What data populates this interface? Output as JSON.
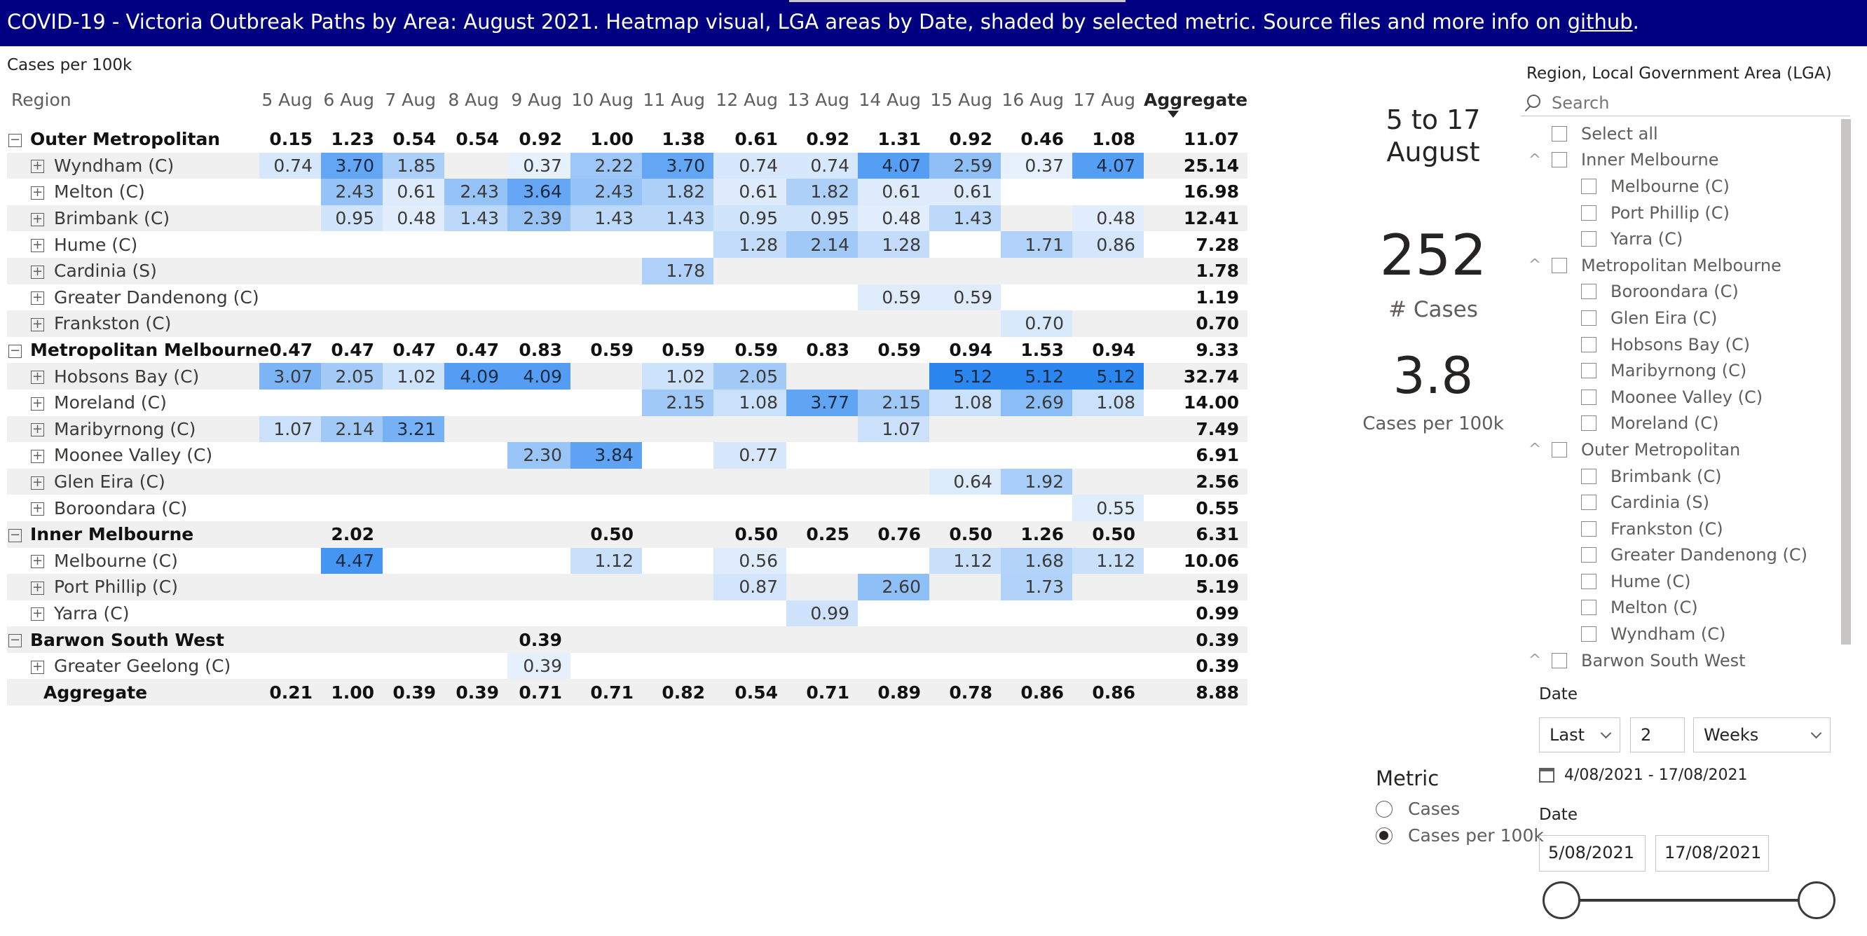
{
  "banner": {
    "text": "COVID-19  - Victoria Outbreak Paths by Area: August 2021.  Heatmap visual, LGA areas by Date, shaded by selected metric. Source files and more info on ",
    "link": "github",
    "suffix": "."
  },
  "matrix": {
    "title": "Cases per 100k",
    "region_header": "Region",
    "dates": [
      "5 Aug",
      "6 Aug",
      "7 Aug",
      "8 Aug",
      "9 Aug",
      "10 Aug",
      "11 Aug",
      "12 Aug",
      "13 Aug",
      "14 Aug",
      "15 Aug",
      "16 Aug",
      "17 Aug"
    ],
    "aggregate_header": "Aggregate",
    "max_value": 5.12,
    "rows": [
      {
        "type": "group",
        "label": "Outer Metropolitan",
        "values": [
          "0.15",
          "1.23",
          "0.54",
          "0.54",
          "0.92",
          "1.00",
          "1.38",
          "0.61",
          "0.92",
          "1.31",
          "0.92",
          "0.46",
          "1.08"
        ],
        "aggregate": "11.07"
      },
      {
        "type": "child",
        "label": "Wyndham (C)",
        "values": [
          "0.74",
          "3.70",
          "1.85",
          "",
          "0.37",
          "2.22",
          "3.70",
          "0.74",
          "0.74",
          "4.07",
          "2.59",
          "0.37",
          "4.07"
        ],
        "aggregate": "25.14"
      },
      {
        "type": "child",
        "label": "Melton (C)",
        "values": [
          "",
          "2.43",
          "0.61",
          "2.43",
          "3.64",
          "2.43",
          "1.82",
          "0.61",
          "1.82",
          "0.61",
          "0.61",
          "",
          ""
        ],
        "aggregate": "16.98"
      },
      {
        "type": "child",
        "label": "Brimbank (C)",
        "values": [
          "",
          "0.95",
          "0.48",
          "1.43",
          "2.39",
          "1.43",
          "1.43",
          "0.95",
          "0.95",
          "0.48",
          "1.43",
          "",
          "0.48"
        ],
        "aggregate": "12.41"
      },
      {
        "type": "child",
        "label": "Hume (C)",
        "values": [
          "",
          "",
          "",
          "",
          "",
          "",
          "",
          "1.28",
          "2.14",
          "1.28",
          "",
          "1.71",
          "0.86"
        ],
        "aggregate": "7.28"
      },
      {
        "type": "child",
        "label": "Cardinia (S)",
        "values": [
          "",
          "",
          "",
          "",
          "",
          "",
          "1.78",
          "",
          "",
          "",
          "",
          "",
          ""
        ],
        "aggregate": "1.78"
      },
      {
        "type": "child",
        "label": "Greater Dandenong (C)",
        "values": [
          "",
          "",
          "",
          "",
          "",
          "",
          "",
          "",
          "",
          "0.59",
          "0.59",
          "",
          ""
        ],
        "aggregate": "1.19"
      },
      {
        "type": "child",
        "label": "Frankston (C)",
        "values": [
          "",
          "",
          "",
          "",
          "",
          "",
          "",
          "",
          "",
          "",
          "",
          "0.70",
          ""
        ],
        "aggregate": "0.70"
      },
      {
        "type": "group",
        "label": "Metropolitan Melbourne",
        "values": [
          "0.47",
          "0.47",
          "0.47",
          "0.47",
          "0.83",
          "0.59",
          "0.59",
          "0.59",
          "0.83",
          "0.59",
          "0.94",
          "1.53",
          "0.94"
        ],
        "aggregate": "9.33"
      },
      {
        "type": "child",
        "label": "Hobsons Bay (C)",
        "values": [
          "3.07",
          "2.05",
          "1.02",
          "4.09",
          "4.09",
          "",
          "1.02",
          "2.05",
          "",
          "",
          "5.12",
          "5.12",
          "5.12"
        ],
        "aggregate": "32.74"
      },
      {
        "type": "child",
        "label": "Moreland (C)",
        "values": [
          "",
          "",
          "",
          "",
          "",
          "",
          "2.15",
          "1.08",
          "3.77",
          "2.15",
          "1.08",
          "2.69",
          "1.08"
        ],
        "aggregate": "14.00"
      },
      {
        "type": "child",
        "label": "Maribyrnong (C)",
        "values": [
          "1.07",
          "2.14",
          "3.21",
          "",
          "",
          "",
          "",
          "",
          "",
          "1.07",
          "",
          "",
          ""
        ],
        "aggregate": "7.49"
      },
      {
        "type": "child",
        "label": "Moonee Valley (C)",
        "values": [
          "",
          "",
          "",
          "",
          "2.30",
          "3.84",
          "",
          "0.77",
          "",
          "",
          "",
          "",
          ""
        ],
        "aggregate": "6.91"
      },
      {
        "type": "child",
        "label": "Glen Eira (C)",
        "values": [
          "",
          "",
          "",
          "",
          "",
          "",
          "",
          "",
          "",
          "",
          "0.64",
          "1.92",
          ""
        ],
        "aggregate": "2.56"
      },
      {
        "type": "child",
        "label": "Boroondara (C)",
        "values": [
          "",
          "",
          "",
          "",
          "",
          "",
          "",
          "",
          "",
          "",
          "",
          "",
          "0.55"
        ],
        "aggregate": "0.55"
      },
      {
        "type": "group",
        "label": "Inner Melbourne",
        "values": [
          "",
          "2.02",
          "",
          "",
          "",
          "0.50",
          "",
          "0.50",
          "0.25",
          "0.76",
          "0.50",
          "1.26",
          "0.50"
        ],
        "aggregate": "6.31"
      },
      {
        "type": "child",
        "label": "Melbourne (C)",
        "values": [
          "",
          "4.47",
          "",
          "",
          "",
          "1.12",
          "",
          "0.56",
          "",
          "",
          "1.12",
          "1.68",
          "1.12"
        ],
        "aggregate": "10.06"
      },
      {
        "type": "child",
        "label": "Port Phillip (C)",
        "values": [
          "",
          "",
          "",
          "",
          "",
          "",
          "",
          "0.87",
          "",
          "2.60",
          "",
          "1.73",
          ""
        ],
        "aggregate": "5.19"
      },
      {
        "type": "child",
        "label": "Yarra (C)",
        "values": [
          "",
          "",
          "",
          "",
          "",
          "",
          "",
          "",
          "0.99",
          "",
          "",
          "",
          ""
        ],
        "aggregate": "0.99"
      },
      {
        "type": "group",
        "label": "Barwon South West",
        "values": [
          "",
          "",
          "",
          "",
          "0.39",
          "",
          "",
          "",
          "",
          "",
          "",
          "",
          ""
        ],
        "aggregate": "0.39"
      },
      {
        "type": "child",
        "label": "Greater Geelong (C)",
        "values": [
          "",
          "",
          "",
          "",
          "0.39",
          "",
          "",
          "",
          "",
          "",
          "",
          "",
          ""
        ],
        "aggregate": "0.39"
      },
      {
        "type": "total",
        "label": "Aggregate",
        "values": [
          "0.21",
          "1.00",
          "0.39",
          "0.39",
          "0.71",
          "0.71",
          "0.82",
          "0.54",
          "0.71",
          "0.89",
          "0.78",
          "0.86",
          "0.86"
        ],
        "aggregate": "8.88"
      }
    ]
  },
  "kpi": {
    "date_range_line1": "5 to 17",
    "date_range_line2": "August",
    "cases_value": "252",
    "cases_label": "# Cases",
    "rate_value": "3.8",
    "rate_label": "Cases per 100k"
  },
  "metric": {
    "title": "Metric",
    "options": [
      {
        "label": "Cases",
        "selected": false
      },
      {
        "label": "Cases per 100k",
        "selected": true
      }
    ]
  },
  "slicer": {
    "title": "Region, Local Government Area (LGA)",
    "search_placeholder": "Search",
    "items": [
      {
        "level": 0,
        "label": "Select all",
        "caret": false
      },
      {
        "level": 0,
        "label": "Inner Melbourne",
        "caret": true
      },
      {
        "level": 1,
        "label": "Melbourne (C)"
      },
      {
        "level": 1,
        "label": "Port Phillip (C)"
      },
      {
        "level": 1,
        "label": "Yarra (C)"
      },
      {
        "level": 0,
        "label": "Metropolitan Melbourne",
        "caret": true
      },
      {
        "level": 1,
        "label": "Boroondara (C)"
      },
      {
        "level": 1,
        "label": "Glen Eira (C)"
      },
      {
        "level": 1,
        "label": "Hobsons Bay (C)"
      },
      {
        "level": 1,
        "label": "Maribyrnong (C)"
      },
      {
        "level": 1,
        "label": "Moonee Valley (C)"
      },
      {
        "level": 1,
        "label": "Moreland (C)"
      },
      {
        "level": 0,
        "label": "Outer Metropolitan",
        "caret": true
      },
      {
        "level": 1,
        "label": "Brimbank (C)"
      },
      {
        "level": 1,
        "label": "Cardinia (S)"
      },
      {
        "level": 1,
        "label": "Frankston (C)"
      },
      {
        "level": 1,
        "label": "Greater Dandenong (C)"
      },
      {
        "level": 1,
        "label": "Hume (C)"
      },
      {
        "level": 1,
        "label": "Melton (C)"
      },
      {
        "level": 1,
        "label": "Wyndham (C)"
      },
      {
        "level": 0,
        "label": "Barwon South West",
        "caret": true
      }
    ]
  },
  "date_filter": {
    "title": "Date",
    "mode": "Last",
    "count": "2",
    "unit": "Weeks",
    "range_text": "4/08/2021 - 17/08/2021"
  },
  "date_slider": {
    "title": "Date",
    "start": "5/08/2021",
    "end": "17/08/2021"
  },
  "colors": {
    "banner": "#000080",
    "heat_max": "#2b86f0",
    "heat_min": "#f5f9fe"
  }
}
